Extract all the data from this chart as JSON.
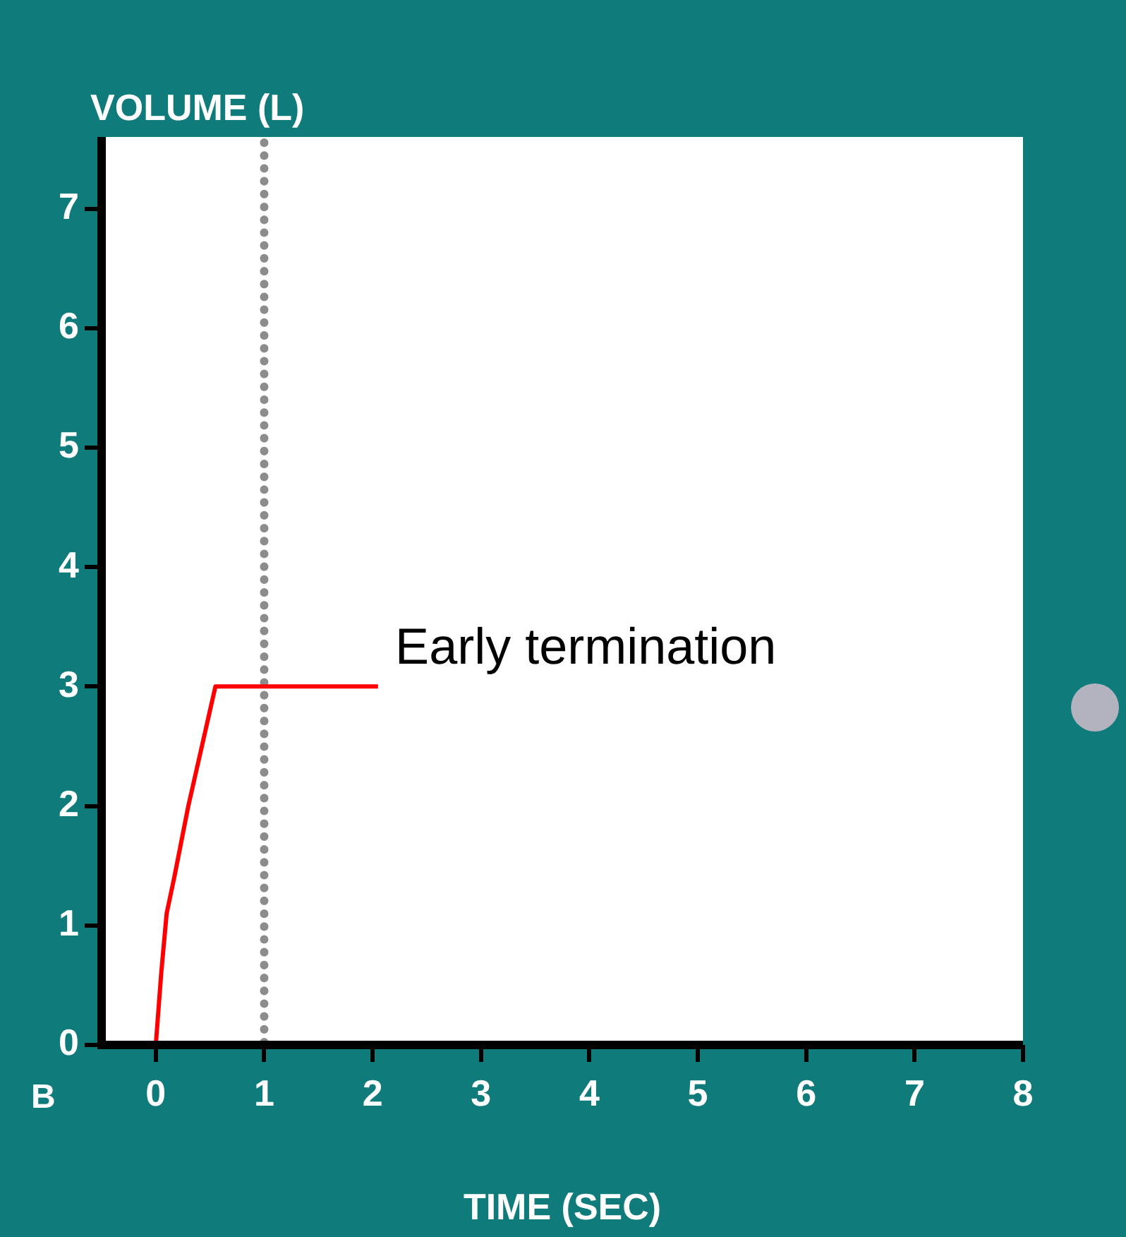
{
  "chart_data": {
    "type": "line",
    "xlabel": "TIME (SEC)",
    "ylabel": "VOLUME (L)",
    "xlim": [
      -0.5,
      8
    ],
    "xticks": [
      0,
      1,
      2,
      3,
      4,
      5,
      6,
      7,
      8
    ],
    "ylim": [
      0,
      7.6
    ],
    "yticks": [
      0,
      1,
      2,
      3,
      4,
      5,
      6,
      7
    ],
    "series": [
      {
        "color": "#ff0000",
        "x": [
          0,
          0.05,
          0.1,
          0.17,
          0.3,
          0.45,
          0.55,
          2.05
        ],
        "values": [
          0,
          0.6,
          1.1,
          1.4,
          2.0,
          2.6,
          3,
          3
        ]
      }
    ],
    "ref_lines": [
      {
        "axis": "x",
        "value": 1,
        "color": "#8c8c8c",
        "line_style": "dotted"
      }
    ],
    "annotations": [
      {
        "text": "Early termination",
        "x": 2,
        "y": 3
      },
      "B"
    ],
    "grid": false,
    "legend": false,
    "marker": "none",
    "line_style": "solid"
  }
}
